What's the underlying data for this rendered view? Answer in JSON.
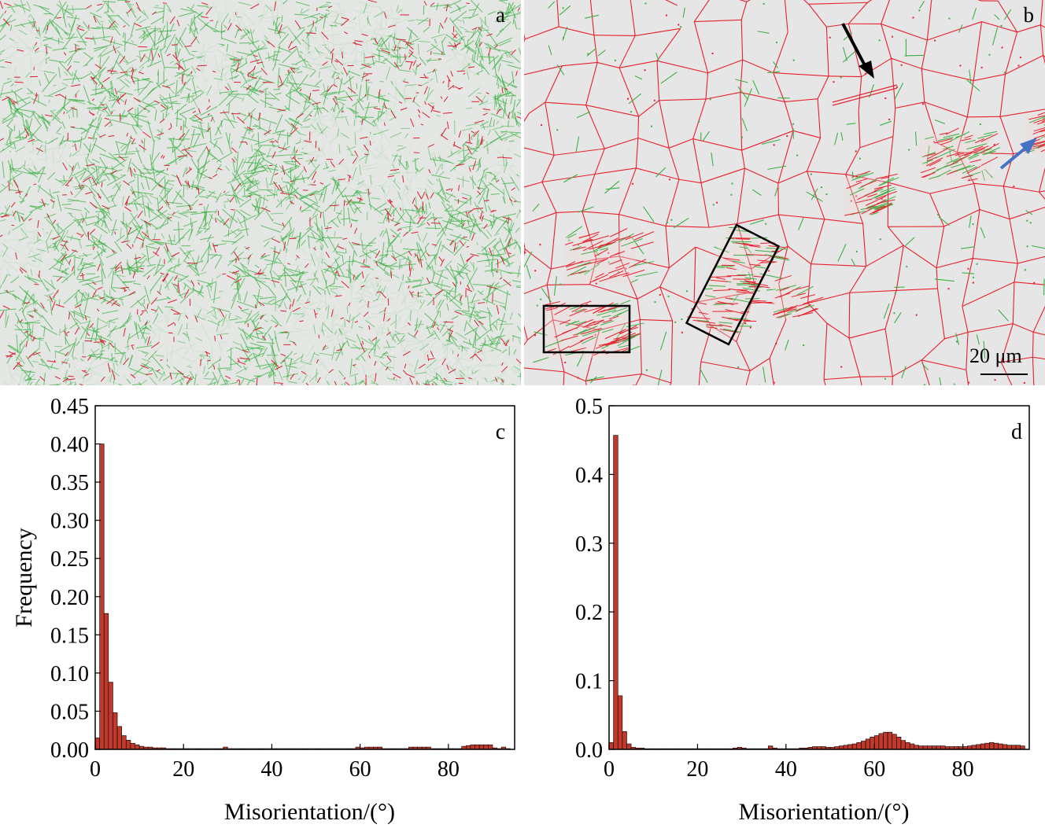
{
  "panel_a": {
    "letter": "a",
    "colors": {
      "background": "#e4e6e4",
      "low_angle": "#3cb043",
      "high_angle": "#dc1e32"
    }
  },
  "panel_b": {
    "letter": "b",
    "scale_bar_label": "20 μm",
    "colors": {
      "background": "#e6e6e6",
      "low_angle": "#3cb043",
      "high_angle": "#e8202c",
      "box": "#000000",
      "black_arrow": "#000000",
      "blue_arrow": "#4472c4"
    }
  },
  "chart_data": [
    {
      "panel": "c",
      "type": "bar",
      "xlabel": "Misorientation/(°)",
      "ylabel": "Frequency",
      "xlim": [
        0,
        95
      ],
      "ylim": [
        0,
        0.45
      ],
      "xticks": [
        0,
        20,
        40,
        60,
        80
      ],
      "xtick_labels": [
        "0",
        "20",
        "40",
        "60",
        "80"
      ],
      "yticks": [
        0,
        0.05,
        0.1,
        0.15,
        0.2,
        0.25,
        0.3,
        0.35,
        0.4,
        0.45
      ],
      "ytick_labels": [
        "0.00",
        "0.05",
        "0.10",
        "0.15",
        "0.20",
        "0.25",
        "0.30",
        "0.35",
        "0.40",
        "0.45"
      ],
      "bin_width": 1,
      "bar_color": "#c0392b",
      "x": [
        0,
        1,
        2,
        3,
        4,
        5,
        6,
        7,
        8,
        9,
        10,
        11,
        12,
        13,
        14,
        15,
        16,
        17,
        18,
        19,
        20,
        21,
        22,
        23,
        24,
        25,
        26,
        27,
        28,
        29,
        30,
        31,
        32,
        33,
        34,
        35,
        36,
        37,
        38,
        39,
        40,
        41,
        42,
        43,
        44,
        45,
        46,
        47,
        48,
        49,
        50,
        51,
        52,
        53,
        54,
        55,
        56,
        57,
        58,
        59,
        60,
        61,
        62,
        63,
        64,
        65,
        66,
        67,
        68,
        69,
        70,
        71,
        72,
        73,
        74,
        75,
        76,
        77,
        78,
        79,
        80,
        81,
        82,
        83,
        84,
        85,
        86,
        87,
        88,
        89,
        90,
        91,
        92,
        93
      ],
      "values": [
        0.015,
        0.4,
        0.178,
        0.088,
        0.048,
        0.03,
        0.018,
        0.012,
        0.008,
        0.006,
        0.004,
        0.003,
        0.003,
        0.002,
        0.002,
        0.002,
        0.001,
        0.001,
        0.001,
        0.001,
        0.001,
        0.001,
        0.001,
        0.001,
        0.001,
        0.001,
        0.001,
        0.001,
        0.001,
        0.003,
        0.001,
        0.001,
        0.001,
        0.001,
        0.001,
        0.001,
        0.001,
        0.001,
        0.001,
        0.001,
        0.001,
        0.001,
        0.001,
        0.001,
        0.001,
        0.001,
        0.001,
        0.001,
        0.001,
        0.001,
        0.001,
        0.001,
        0.001,
        0.001,
        0.001,
        0.001,
        0.001,
        0.001,
        0.001,
        0.003,
        0.002,
        0.003,
        0.003,
        0.003,
        0.003,
        0.001,
        0.001,
        0.001,
        0.001,
        0.001,
        0.001,
        0.003,
        0.003,
        0.003,
        0.003,
        0.003,
        0.001,
        0.001,
        0.001,
        0.001,
        0.001,
        0.001,
        0.001,
        0.004,
        0.005,
        0.006,
        0.006,
        0.006,
        0.006,
        0.006,
        0.002,
        0.001,
        0.003,
        0.001
      ]
    },
    {
      "panel": "d",
      "type": "bar",
      "xlabel": "Misorientation/(°)",
      "ylabel": "",
      "xlim": [
        0,
        95
      ],
      "ylim": [
        0,
        0.5
      ],
      "xticks": [
        0,
        20,
        40,
        60,
        80
      ],
      "xtick_labels": [
        "0",
        "20",
        "40",
        "60",
        "80"
      ],
      "yticks": [
        0,
        0.1,
        0.2,
        0.3,
        0.4,
        0.5
      ],
      "ytick_labels": [
        "0.0",
        "0.1",
        "0.2",
        "0.3",
        "0.4",
        "0.5"
      ],
      "bin_width": 1,
      "bar_color": "#c0392b",
      "x": [
        0,
        1,
        2,
        3,
        4,
        5,
        6,
        7,
        8,
        9,
        10,
        11,
        12,
        13,
        14,
        15,
        16,
        17,
        18,
        19,
        20,
        21,
        22,
        23,
        24,
        25,
        26,
        27,
        28,
        29,
        30,
        31,
        32,
        33,
        34,
        35,
        36,
        37,
        38,
        39,
        40,
        41,
        42,
        43,
        44,
        45,
        46,
        47,
        48,
        49,
        50,
        51,
        52,
        53,
        54,
        55,
        56,
        57,
        58,
        59,
        60,
        61,
        62,
        63,
        64,
        65,
        66,
        67,
        68,
        69,
        70,
        71,
        72,
        73,
        74,
        75,
        76,
        77,
        78,
        79,
        80,
        81,
        82,
        83,
        84,
        85,
        86,
        87,
        88,
        89,
        90,
        91,
        92,
        93
      ],
      "values": [
        0.01,
        0.457,
        0.078,
        0.026,
        0.008,
        0.003,
        0.002,
        0.002,
        0.001,
        0.001,
        0.001,
        0.001,
        0.001,
        0.001,
        0.001,
        0.001,
        0.001,
        0.001,
        0.001,
        0.001,
        0.001,
        0.001,
        0.001,
        0.001,
        0.001,
        0.001,
        0.001,
        0.001,
        0.002,
        0.003,
        0.002,
        0.001,
        0.001,
        0.001,
        0.001,
        0.001,
        0.005,
        0.002,
        0.001,
        0.001,
        0.001,
        0.001,
        0.001,
        0.002,
        0.002,
        0.003,
        0.004,
        0.004,
        0.004,
        0.003,
        0.003,
        0.004,
        0.005,
        0.006,
        0.007,
        0.008,
        0.01,
        0.012,
        0.015,
        0.018,
        0.02,
        0.023,
        0.025,
        0.025,
        0.022,
        0.018,
        0.013,
        0.01,
        0.008,
        0.006,
        0.005,
        0.005,
        0.005,
        0.005,
        0.005,
        0.005,
        0.004,
        0.004,
        0.004,
        0.004,
        0.004,
        0.005,
        0.006,
        0.007,
        0.008,
        0.009,
        0.01,
        0.009,
        0.008,
        0.007,
        0.006,
        0.006,
        0.006,
        0.005
      ]
    }
  ]
}
